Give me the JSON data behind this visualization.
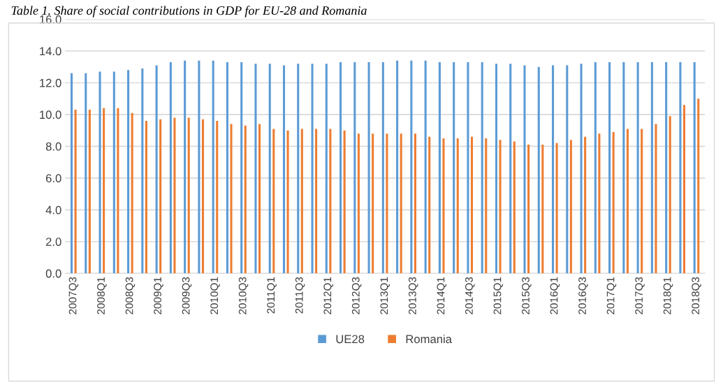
{
  "chart_data": {
    "type": "bar",
    "title": "Table 1. Share of social contributions in GDP for EU-28 and Romania",
    "categories": [
      "2007Q3",
      null,
      "2008Q1",
      null,
      "2008Q3",
      null,
      "2009Q1",
      null,
      "2009Q3",
      null,
      "2010Q1",
      null,
      "2010Q3",
      null,
      "2011Q1",
      null,
      "2011Q3",
      null,
      "2012Q1",
      null,
      "2012Q3",
      null,
      "2013Q1",
      null,
      "2013Q3",
      null,
      "2014Q1",
      null,
      "2014Q3",
      null,
      "2015Q1",
      null,
      "2015Q3",
      null,
      "2016Q1",
      null,
      "2016Q3",
      null,
      "2017Q1",
      null,
      "2017Q3",
      null,
      "2018Q1",
      null,
      "2018Q3"
    ],
    "series": [
      {
        "name": "UE28",
        "color": "#5b9bd5",
        "values": [
          12.6,
          12.6,
          12.7,
          12.7,
          12.8,
          12.9,
          13.1,
          13.3,
          13.4,
          13.4,
          13.4,
          13.3,
          13.3,
          13.2,
          13.2,
          13.1,
          13.2,
          13.2,
          13.2,
          13.3,
          13.3,
          13.3,
          13.3,
          13.4,
          13.4,
          13.4,
          13.3,
          13.3,
          13.3,
          13.3,
          13.2,
          13.2,
          13.1,
          13.0,
          13.1,
          13.1,
          13.2,
          13.3,
          13.3,
          13.3,
          13.3,
          13.3,
          13.3,
          13.3,
          13.3
        ]
      },
      {
        "name": "Romania",
        "color": "#ed7d31",
        "values": [
          10.3,
          10.3,
          10.4,
          10.4,
          10.1,
          9.6,
          9.7,
          9.8,
          9.8,
          9.7,
          9.6,
          9.4,
          9.3,
          9.4,
          9.1,
          9.0,
          9.1,
          9.1,
          9.1,
          9.0,
          8.8,
          8.8,
          8.8,
          8.8,
          8.8,
          8.6,
          8.5,
          8.5,
          8.6,
          8.5,
          8.4,
          8.3,
          8.1,
          8.1,
          8.2,
          8.4,
          8.6,
          8.8,
          8.9,
          9.1,
          9.1,
          9.4,
          9.9,
          10.6,
          11.0
        ]
      }
    ],
    "ylim": [
      0,
      16
    ],
    "yticks": [
      {
        "value": 0,
        "label": "0.0"
      },
      {
        "value": 2,
        "label": "2.0"
      },
      {
        "value": 4,
        "label": "4.0"
      },
      {
        "value": 6,
        "label": "6.0"
      },
      {
        "value": 8,
        "label": "8.0"
      },
      {
        "value": 10,
        "label": "10.0"
      },
      {
        "value": 12,
        "label": "12.0"
      },
      {
        "value": 14,
        "label": "14.0"
      },
      {
        "value": 16,
        "label": "16.0"
      }
    ],
    "grid": "y",
    "legend": "bottom"
  }
}
